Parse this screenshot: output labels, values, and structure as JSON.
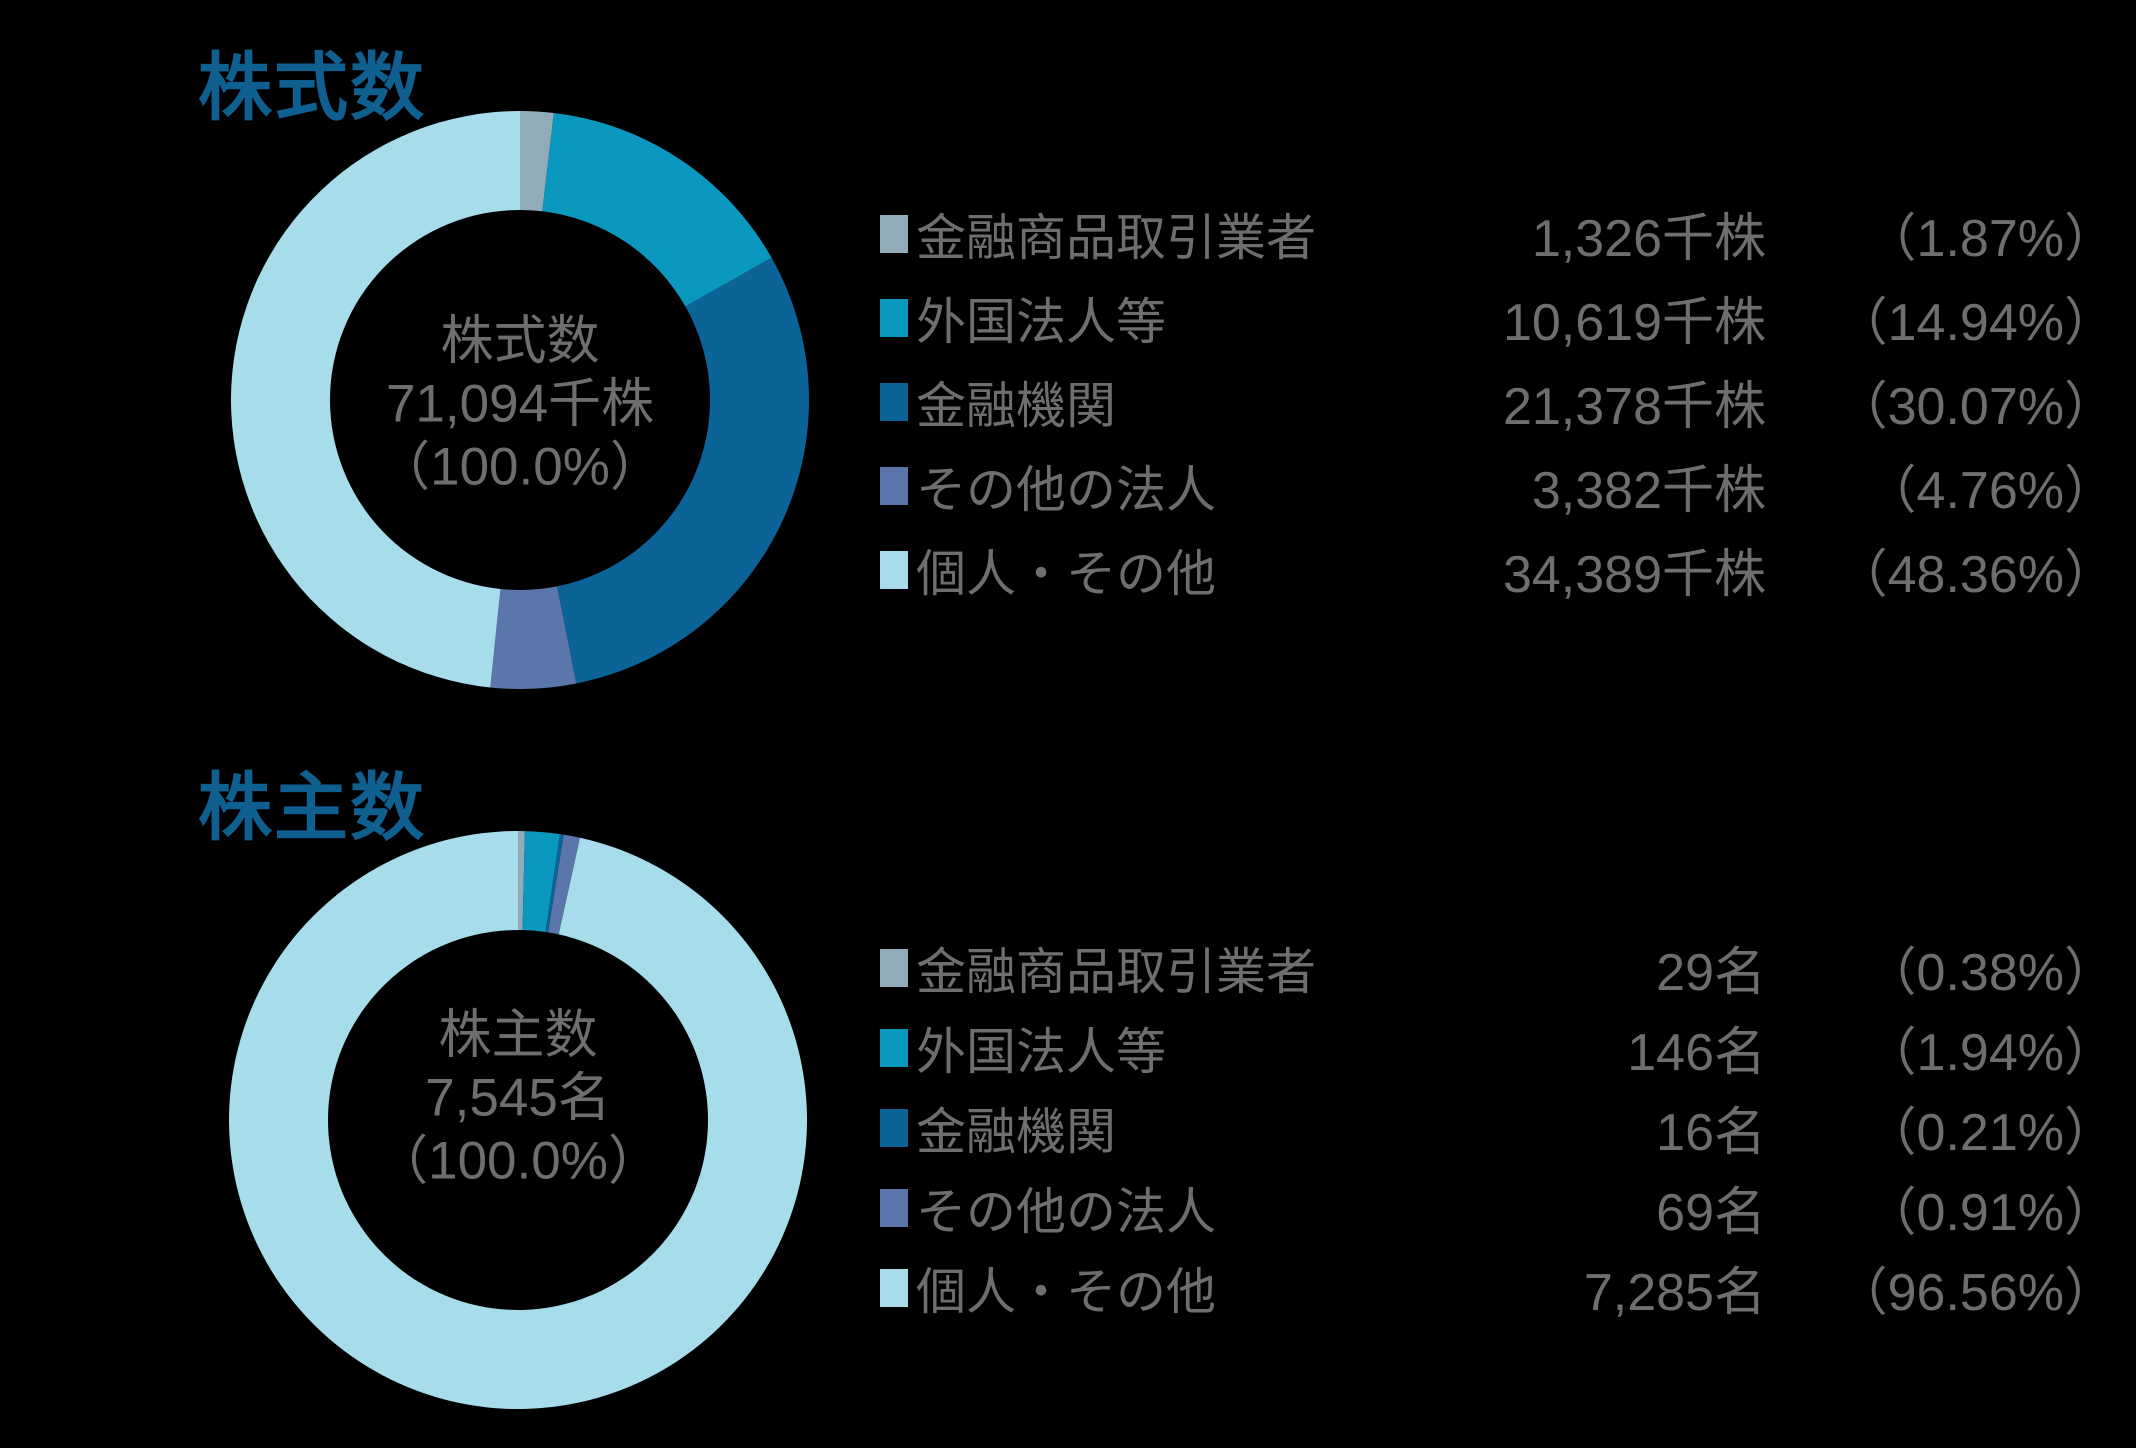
{
  "page": {
    "background_color": "#000000",
    "title_color": "#0f5f90",
    "text_color": "#6e6e6e"
  },
  "chart_data": [
    {
      "type": "pie",
      "variant": "donut",
      "title": "株式数",
      "legend_position": "right",
      "categories": [
        "金融商品取引業者",
        "外国法人等",
        "金融機関",
        "その他の法人",
        "個人・その他"
      ],
      "values": [
        1326,
        10619,
        21378,
        3382,
        34389
      ],
      "value_labels": [
        "1,326千株",
        "10,619千株",
        "21,378千株",
        "3,382千株",
        "34,389千株"
      ],
      "percents": [
        1.87,
        14.94,
        30.07,
        4.76,
        48.36
      ],
      "percent_labels": [
        "（1.87%）",
        "（14.94%）",
        "（30.07%）",
        "（4.76%）",
        "（48.36%）"
      ],
      "colors": [
        "#92abb9",
        "#0b98bf",
        "#0b6397",
        "#5a76aa",
        "#a7dcea"
      ],
      "unit": "千株",
      "total": 71094,
      "center_lines": [
        "株式数",
        "71,094千株",
        "（100.0%）"
      ]
    },
    {
      "type": "pie",
      "variant": "donut",
      "title": "株主数",
      "legend_position": "right",
      "categories": [
        "金融商品取引業者",
        "外国法人等",
        "金融機関",
        "その他の法人",
        "個人・その他"
      ],
      "values": [
        29,
        146,
        16,
        69,
        7285
      ],
      "value_labels": [
        "29名",
        "146名",
        "16名",
        "69名",
        "7,285名"
      ],
      "percents": [
        0.38,
        1.94,
        0.21,
        0.91,
        96.56
      ],
      "percent_labels": [
        "（0.38%）",
        "（1.94%）",
        "（0.21%）",
        "（0.91%）",
        "（96.56%）"
      ],
      "colors": [
        "#92abb9",
        "#0b98bf",
        "#0b6397",
        "#5a76aa",
        "#a7dcea"
      ],
      "unit": "名",
      "total": 7545,
      "center_lines": [
        "株主数",
        "7,545名",
        "（100.0%）"
      ]
    }
  ]
}
